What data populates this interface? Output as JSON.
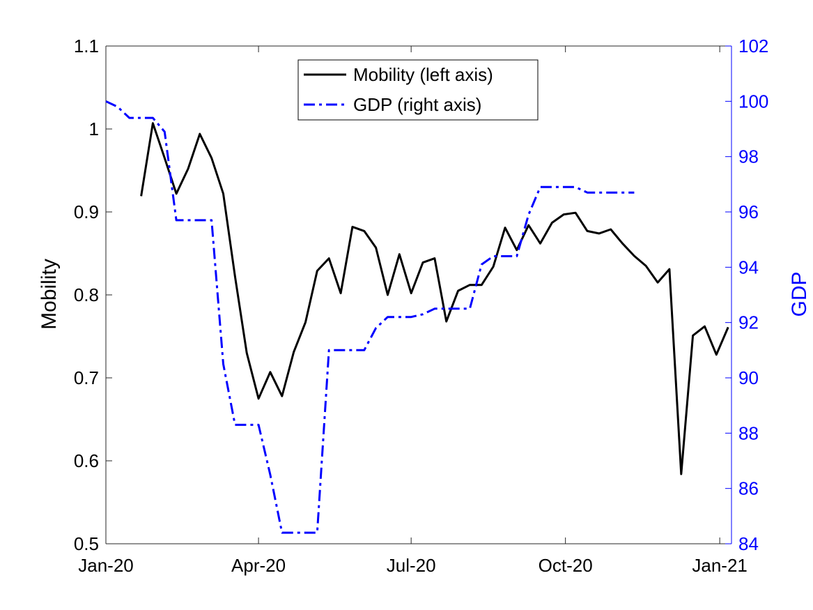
{
  "chart_data": {
    "type": "line",
    "title": "",
    "xlabel": "",
    "x_axis": {
      "min": "2020-01-01",
      "max": "2021-01-08",
      "ticks": [
        {
          "date": "2020-01-01",
          "label": "Jan-20"
        },
        {
          "date": "2020-04-01",
          "label": "Apr-20"
        },
        {
          "date": "2020-07-01",
          "label": "Jul-20"
        },
        {
          "date": "2020-10-01",
          "label": "Oct-20"
        },
        {
          "date": "2021-01-01",
          "label": "Jan-21"
        }
      ]
    },
    "y_left": {
      "label": "Mobility",
      "min": 0.5,
      "max": 1.1,
      "ticks": [
        0.5,
        0.6,
        0.7,
        0.8,
        0.9,
        1,
        1.1
      ],
      "tick_labels": [
        "0.5",
        "0.6",
        "0.7",
        "0.8",
        "0.9",
        "1",
        "1.1"
      ],
      "color": "#000000"
    },
    "y_right": {
      "label": "GDP",
      "min": 84,
      "max": 102,
      "ticks": [
        84,
        86,
        88,
        90,
        92,
        94,
        96,
        98,
        100,
        102
      ],
      "tick_labels": [
        "84",
        "86",
        "88",
        "90",
        "92",
        "94",
        "96",
        "98",
        "100",
        "102"
      ],
      "color": "#0000ff"
    },
    "legend": {
      "placement": "top-center",
      "entries": [
        "Mobility (left axis)",
        "GDP (right axis)"
      ]
    },
    "grid": false,
    "series": [
      {
        "name": "Mobility (left axis)",
        "axis": "left",
        "color": "#000000",
        "style": "solid",
        "points": [
          [
            "2020-01-22",
            0.919
          ],
          [
            "2020-01-29",
            1.007
          ],
          [
            "2020-02-05",
            0.965
          ],
          [
            "2020-02-12",
            0.922
          ],
          [
            "2020-02-19",
            0.952
          ],
          [
            "2020-02-26",
            0.994
          ],
          [
            "2020-03-04",
            0.965
          ],
          [
            "2020-03-11",
            0.922
          ],
          [
            "2020-03-18",
            0.822
          ],
          [
            "2020-03-25",
            0.73
          ],
          [
            "2020-04-01",
            0.675
          ],
          [
            "2020-04-08",
            0.707
          ],
          [
            "2020-04-15",
            0.678
          ],
          [
            "2020-04-22",
            0.731
          ],
          [
            "2020-04-29",
            0.767
          ],
          [
            "2020-05-06",
            0.829
          ],
          [
            "2020-05-13",
            0.844
          ],
          [
            "2020-05-20",
            0.802
          ],
          [
            "2020-05-27",
            0.882
          ],
          [
            "2020-06-03",
            0.877
          ],
          [
            "2020-06-10",
            0.857
          ],
          [
            "2020-06-17",
            0.8
          ],
          [
            "2020-06-24",
            0.849
          ],
          [
            "2020-07-01",
            0.802
          ],
          [
            "2020-07-08",
            0.839
          ],
          [
            "2020-07-15",
            0.844
          ],
          [
            "2020-07-22",
            0.768
          ],
          [
            "2020-07-29",
            0.805
          ],
          [
            "2020-08-05",
            0.812
          ],
          [
            "2020-08-12",
            0.812
          ],
          [
            "2020-08-19",
            0.834
          ],
          [
            "2020-08-26",
            0.881
          ],
          [
            "2020-09-02",
            0.854
          ],
          [
            "2020-09-09",
            0.884
          ],
          [
            "2020-09-16",
            0.862
          ],
          [
            "2020-09-23",
            0.887
          ],
          [
            "2020-09-30",
            0.897
          ],
          [
            "2020-10-07",
            0.899
          ],
          [
            "2020-10-14",
            0.877
          ],
          [
            "2020-10-21",
            0.874
          ],
          [
            "2020-10-28",
            0.879
          ],
          [
            "2020-11-04",
            0.862
          ],
          [
            "2020-11-11",
            0.847
          ],
          [
            "2020-11-18",
            0.835
          ],
          [
            "2020-11-25",
            0.815
          ],
          [
            "2020-12-02",
            0.831
          ],
          [
            "2020-12-09",
            0.584
          ],
          [
            "2020-12-16",
            0.751
          ],
          [
            "2020-12-23",
            0.762
          ],
          [
            "2020-12-30",
            0.728
          ],
          [
            "2021-01-06",
            0.761
          ]
        ]
      },
      {
        "name": "GDP (right axis)",
        "axis": "right",
        "color": "#0000ff",
        "style": "dash-dot",
        "points": [
          [
            "2020-01-01",
            100.0
          ],
          [
            "2020-01-08",
            99.8
          ],
          [
            "2020-01-15",
            99.4
          ],
          [
            "2020-01-22",
            99.4
          ],
          [
            "2020-01-29",
            99.4
          ],
          [
            "2020-02-05",
            98.9
          ],
          [
            "2020-02-12",
            95.7
          ],
          [
            "2020-02-19",
            95.7
          ],
          [
            "2020-02-26",
            95.7
          ],
          [
            "2020-03-04",
            95.7
          ],
          [
            "2020-03-11",
            90.5
          ],
          [
            "2020-03-18",
            88.3
          ],
          [
            "2020-03-25",
            88.3
          ],
          [
            "2020-04-01",
            88.3
          ],
          [
            "2020-04-08",
            86.5
          ],
          [
            "2020-04-15",
            84.4
          ],
          [
            "2020-04-22",
            84.4
          ],
          [
            "2020-04-29",
            84.4
          ],
          [
            "2020-05-06",
            84.4
          ],
          [
            "2020-05-13",
            91.0
          ],
          [
            "2020-05-20",
            91.0
          ],
          [
            "2020-05-27",
            91.0
          ],
          [
            "2020-06-03",
            91.0
          ],
          [
            "2020-06-10",
            91.8
          ],
          [
            "2020-06-17",
            92.2
          ],
          [
            "2020-06-24",
            92.2
          ],
          [
            "2020-07-01",
            92.2
          ],
          [
            "2020-07-08",
            92.3
          ],
          [
            "2020-07-15",
            92.5
          ],
          [
            "2020-07-22",
            92.5
          ],
          [
            "2020-07-29",
            92.5
          ],
          [
            "2020-08-05",
            92.5
          ],
          [
            "2020-08-12",
            94.1
          ],
          [
            "2020-08-19",
            94.4
          ],
          [
            "2020-08-26",
            94.4
          ],
          [
            "2020-09-02",
            94.4
          ],
          [
            "2020-09-09",
            95.9
          ],
          [
            "2020-09-16",
            96.9
          ],
          [
            "2020-09-23",
            96.9
          ],
          [
            "2020-09-30",
            96.9
          ],
          [
            "2020-10-07",
            96.9
          ],
          [
            "2020-10-14",
            96.7
          ],
          [
            "2020-10-21",
            96.7
          ],
          [
            "2020-10-28",
            96.7
          ],
          [
            "2020-11-04",
            96.7
          ],
          [
            "2020-11-11",
            96.7
          ]
        ]
      }
    ]
  }
}
